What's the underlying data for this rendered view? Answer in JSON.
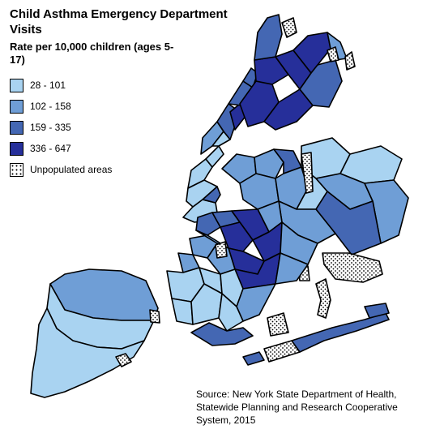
{
  "title": "Child Asthma Emergency Department Visits",
  "subtitle": "Rate per 10,000 children (ages 5-17)",
  "legend": [
    {
      "label": "28 - 101",
      "color": "#a9d3f1",
      "pattern": false
    },
    {
      "label": "102 - 158",
      "color": "#6f9ed6",
      "pattern": false
    },
    {
      "label": "159 - 335",
      "color": "#4467b3",
      "pattern": false
    },
    {
      "label": "336 - 647",
      "color": "#262f9a",
      "pattern": false
    },
    {
      "label": "Unpopulated areas",
      "color": "#ffffff",
      "pattern": true
    }
  ],
  "source": "Source: New York State Department of Health, Statewide Planning and Research Cooperative System, 2015"
}
